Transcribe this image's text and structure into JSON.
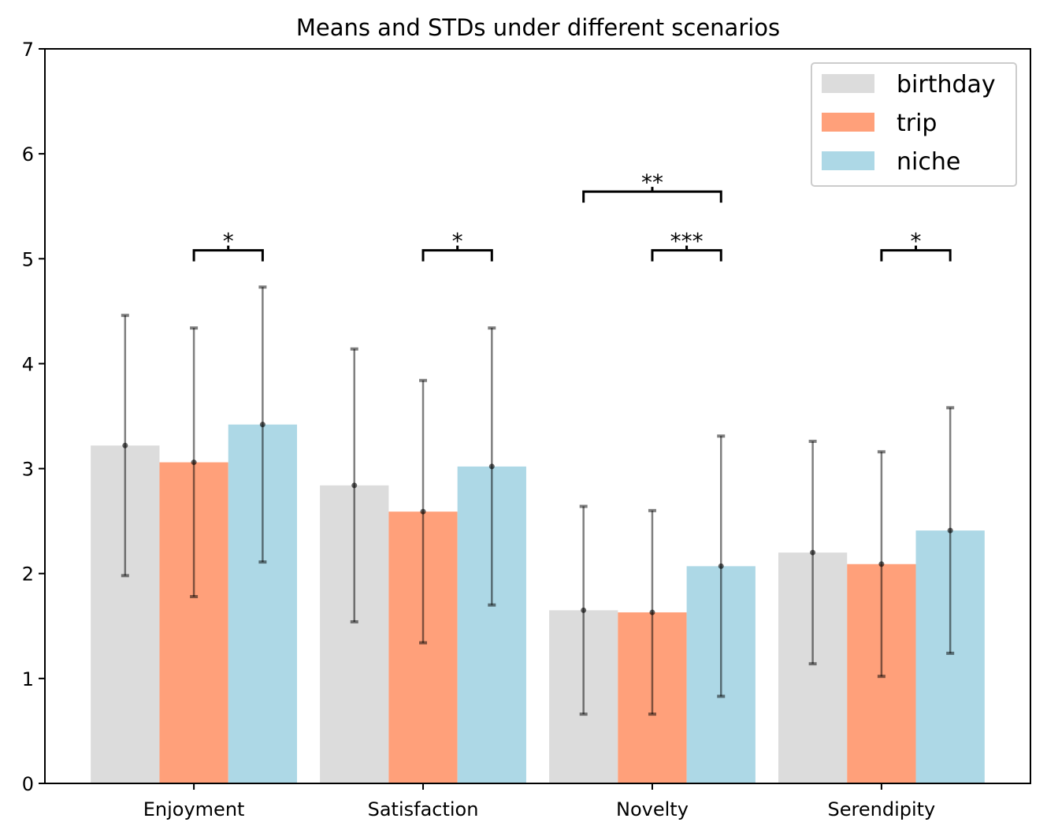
{
  "chart_data": {
    "type": "bar",
    "title": "Means and STDs under different scenarios",
    "xlabel": "",
    "ylabel": "",
    "categories": [
      "Enjoyment",
      "Satisfaction",
      "Novelty",
      "Serendipity"
    ],
    "ylim": [
      0,
      7
    ],
    "yticks": [
      "0",
      "1",
      "2",
      "3",
      "4",
      "5",
      "6",
      "7"
    ],
    "series": [
      {
        "name": "birthday",
        "color": "#dcdcdc",
        "values": [
          3.22,
          2.84,
          1.65,
          2.2
        ],
        "std": [
          1.24,
          1.3,
          0.99,
          1.06
        ]
      },
      {
        "name": "trip",
        "color": "#ffa07a",
        "values": [
          3.06,
          2.59,
          1.63,
          2.09
        ],
        "std": [
          1.28,
          1.25,
          0.97,
          1.07
        ]
      },
      {
        "name": "niche",
        "color": "#add8e6",
        "values": [
          3.42,
          3.02,
          2.07,
          2.41
        ],
        "std": [
          1.31,
          1.32,
          1.24,
          1.17
        ]
      }
    ],
    "significance": [
      {
        "category": 0,
        "from": 1,
        "to": 2,
        "level": 5.08,
        "label": "*"
      },
      {
        "category": 1,
        "from": 1,
        "to": 2,
        "level": 5.08,
        "label": "*"
      },
      {
        "category": 2,
        "from": 0,
        "to": 2,
        "level": 5.64,
        "label": "**"
      },
      {
        "category": 2,
        "from": 1,
        "to": 2,
        "level": 5.08,
        "label": "***"
      },
      {
        "category": 3,
        "from": 1,
        "to": 2,
        "level": 5.08,
        "label": "*"
      }
    ],
    "legend_position": "top-right",
    "grid": false
  }
}
